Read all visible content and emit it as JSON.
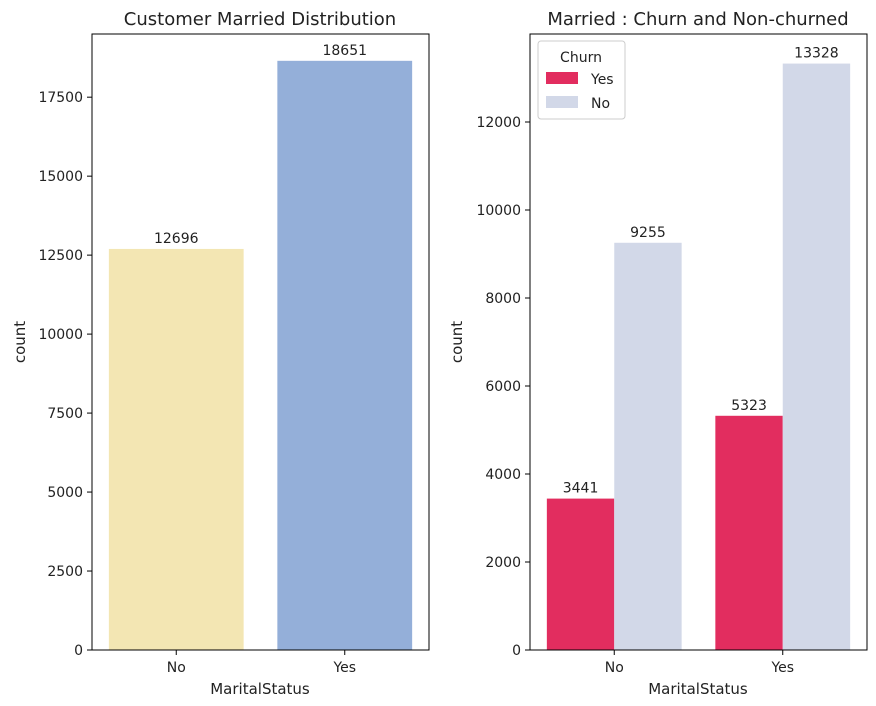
{
  "chart_data": [
    {
      "type": "bar",
      "title": "Customer Married Distribution",
      "xlabel": "MaritalStatus",
      "ylabel": "count",
      "categories": [
        "No",
        "Yes"
      ],
      "values": [
        12696,
        18651
      ],
      "colors": [
        "#f3e6b3",
        "#94afd9"
      ],
      "ylim": [
        0,
        19500
      ],
      "yticks": [
        0,
        2500,
        5000,
        7500,
        10000,
        12500,
        15000,
        17500
      ],
      "data_labels": [
        "12696",
        "18651"
      ],
      "grid": false
    },
    {
      "type": "bar",
      "title": "Married : Churn and Non-churned",
      "xlabel": "MaritalStatus",
      "ylabel": "count",
      "categories": [
        "No",
        "Yes"
      ],
      "series": [
        {
          "name": "Yes",
          "values": [
            3441,
            5323
          ],
          "color": "#e22d5f"
        },
        {
          "name": "No",
          "values": [
            9255,
            13328
          ],
          "color": "#d2d8e8"
        }
      ],
      "legend": {
        "title": "Churn",
        "position": "top-left"
      },
      "ylim": [
        0,
        14000
      ],
      "yticks": [
        0,
        2000,
        4000,
        6000,
        8000,
        10000,
        12000
      ],
      "grid": false
    }
  ]
}
